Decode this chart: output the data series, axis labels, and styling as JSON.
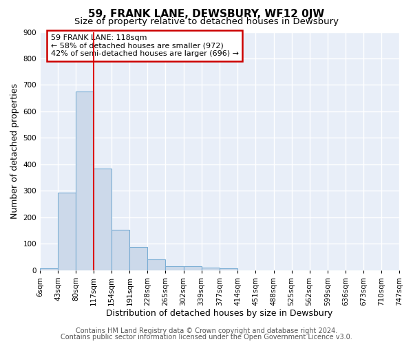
{
  "title": "59, FRANK LANE, DEWSBURY, WF12 0JW",
  "subtitle": "Size of property relative to detached houses in Dewsbury",
  "xlabel": "Distribution of detached houses by size in Dewsbury",
  "ylabel": "Number of detached properties",
  "bin_edges": [
    6,
    43,
    80,
    117,
    154,
    191,
    228,
    265,
    302,
    339,
    377,
    414,
    451,
    488,
    525,
    562,
    599,
    636,
    673,
    710,
    747
  ],
  "bin_labels": [
    "6sqm",
    "43sqm",
    "80sqm",
    "117sqm",
    "154sqm",
    "191sqm",
    "228sqm",
    "265sqm",
    "302sqm",
    "339sqm",
    "377sqm",
    "414sqm",
    "451sqm",
    "488sqm",
    "525sqm",
    "562sqm",
    "599sqm",
    "636sqm",
    "673sqm",
    "710sqm",
    "747sqm"
  ],
  "bar_heights": [
    7,
    293,
    675,
    385,
    153,
    88,
    40,
    14,
    14,
    11,
    7,
    0,
    0,
    0,
    0,
    0,
    0,
    0,
    0,
    0
  ],
  "bar_color": "#ccd9ea",
  "bar_edge_color": "#7aadd4",
  "vline_x": 117,
  "vline_color": "#dd0000",
  "ylim": [
    0,
    900
  ],
  "yticks": [
    0,
    100,
    200,
    300,
    400,
    500,
    600,
    700,
    800,
    900
  ],
  "annotation_text": "59 FRANK LANE: 118sqm\n← 58% of detached houses are smaller (972)\n42% of semi-detached houses are larger (696) →",
  "annotation_box_facecolor": "#ffffff",
  "annotation_box_edge": "#cc0000",
  "fig_background": "#ffffff",
  "axes_background": "#e8eef8",
  "grid_color": "#ffffff",
  "title_fontsize": 11,
  "subtitle_fontsize": 9.5,
  "axis_label_fontsize": 9,
  "tick_fontsize": 7.5,
  "annotation_fontsize": 8,
  "footer_fontsize": 7,
  "footer_line1": "Contains HM Land Registry data © Crown copyright and database right 2024.",
  "footer_line2": "Contains public sector information licensed under the Open Government Licence v3.0."
}
